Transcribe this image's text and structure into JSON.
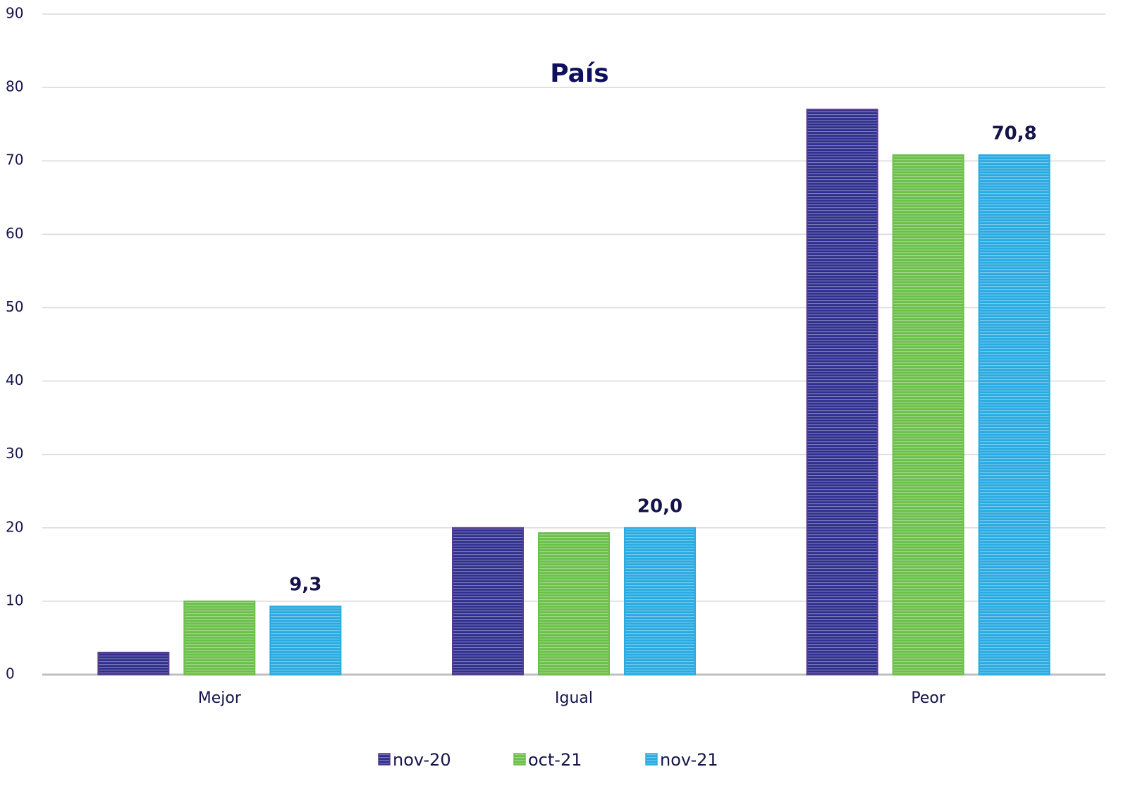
{
  "chart_data": {
    "type": "bar",
    "title": "País",
    "categories": [
      "Mejor",
      "Igual",
      "Peor"
    ],
    "series": [
      {
        "name": "nov-20",
        "color": "#2f2f8f",
        "values": [
          3,
          20,
          77
        ]
      },
      {
        "name": "oct-21",
        "color": "#6cc04a",
        "values": [
          10,
          19.3,
          70.8
        ]
      },
      {
        "name": "nov-21",
        "color": "#29abe2",
        "values": [
          9.3,
          20.0,
          70.8
        ],
        "value_labels": [
          "9,3",
          "20,0",
          "70,8"
        ]
      }
    ],
    "ylim": [
      0,
      90
    ],
    "yticks": [
      0,
      10,
      20,
      30,
      40,
      50,
      60,
      70,
      80,
      90
    ],
    "grid": true,
    "legend": "bottom"
  }
}
